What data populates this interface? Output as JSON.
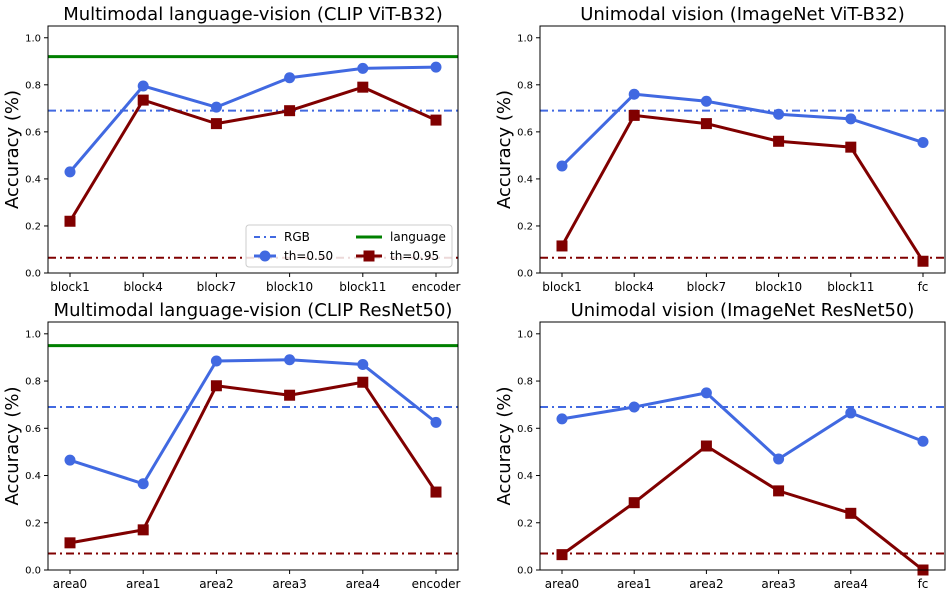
{
  "colors": {
    "blue": "#4169e1",
    "darkred": "#800000",
    "green": "#008000",
    "rgb_line": "#4169e1",
    "chance_line": "#800000"
  },
  "legend": {
    "rgb": "RGB",
    "language": "language",
    "th050": "th=0.50",
    "th095": "th=0.95"
  },
  "chart_data": [
    {
      "type": "line",
      "title": "Multimodal language-vision (CLIP ViT-B32)",
      "ylabel": "Accuracy (%)",
      "ylim": [
        0,
        1.05
      ],
      "yticks": [
        "0.0",
        "0.2",
        "0.4",
        "0.6",
        "0.8",
        "1.0"
      ],
      "categories": [
        "block1",
        "block4",
        "block7",
        "block10",
        "block11",
        "encoder"
      ],
      "series": [
        {
          "name": "th=0.50",
          "values": [
            0.43,
            0.795,
            0.705,
            0.83,
            0.87,
            0.875
          ]
        },
        {
          "name": "th=0.95",
          "values": [
            0.22,
            0.735,
            0.635,
            0.69,
            0.79,
            0.65
          ]
        }
      ],
      "hlines": {
        "RGB": 0.69,
        "language": 0.92,
        "chance": 0.065
      },
      "legend_loc": "lower-right"
    },
    {
      "type": "line",
      "title": "Unimodal vision (ImageNet ViT-B32)",
      "ylabel": "Accuracy (%)",
      "ylim": [
        0,
        1.05
      ],
      "yticks": [
        "0.0",
        "0.2",
        "0.4",
        "0.6",
        "0.8",
        "1.0"
      ],
      "categories": [
        "block1",
        "block4",
        "block7",
        "block10",
        "block11",
        "fc"
      ],
      "series": [
        {
          "name": "th=0.50",
          "values": [
            0.455,
            0.76,
            0.73,
            0.675,
            0.655,
            0.555
          ]
        },
        {
          "name": "th=0.95",
          "values": [
            0.115,
            0.67,
            0.635,
            0.56,
            0.535,
            0.05
          ]
        }
      ],
      "hlines": {
        "RGB": 0.69,
        "chance": 0.065
      }
    },
    {
      "type": "line",
      "title": "Multimodal language-vision (CLIP ResNet50)",
      "ylabel": "Accuracy (%)",
      "ylim": [
        0,
        1.05
      ],
      "yticks": [
        "0.0",
        "0.2",
        "0.4",
        "0.6",
        "0.8",
        "1.0"
      ],
      "categories": [
        "area0",
        "area1",
        "area2",
        "area3",
        "area4",
        "encoder"
      ],
      "series": [
        {
          "name": "th=0.50",
          "values": [
            0.465,
            0.365,
            0.885,
            0.89,
            0.87,
            0.625
          ]
        },
        {
          "name": "th=0.95",
          "values": [
            0.115,
            0.17,
            0.78,
            0.74,
            0.795,
            0.33
          ]
        }
      ],
      "hlines": {
        "RGB": 0.69,
        "language": 0.95,
        "chance": 0.07
      }
    },
    {
      "type": "line",
      "title": "Unimodal vision (ImageNet ResNet50)",
      "ylabel": "Accuracy (%)",
      "ylim": [
        0,
        1.05
      ],
      "yticks": [
        "0.0",
        "0.2",
        "0.4",
        "0.6",
        "0.8",
        "1.0"
      ],
      "categories": [
        "area0",
        "area1",
        "area2",
        "area3",
        "area4",
        "fc"
      ],
      "series": [
        {
          "name": "th=0.50",
          "values": [
            0.64,
            0.69,
            0.75,
            0.47,
            0.665,
            0.545
          ]
        },
        {
          "name": "th=0.95",
          "values": [
            0.065,
            0.285,
            0.525,
            0.335,
            0.24,
            0.0
          ]
        }
      ],
      "hlines": {
        "RGB": 0.69,
        "chance": 0.07
      }
    }
  ]
}
